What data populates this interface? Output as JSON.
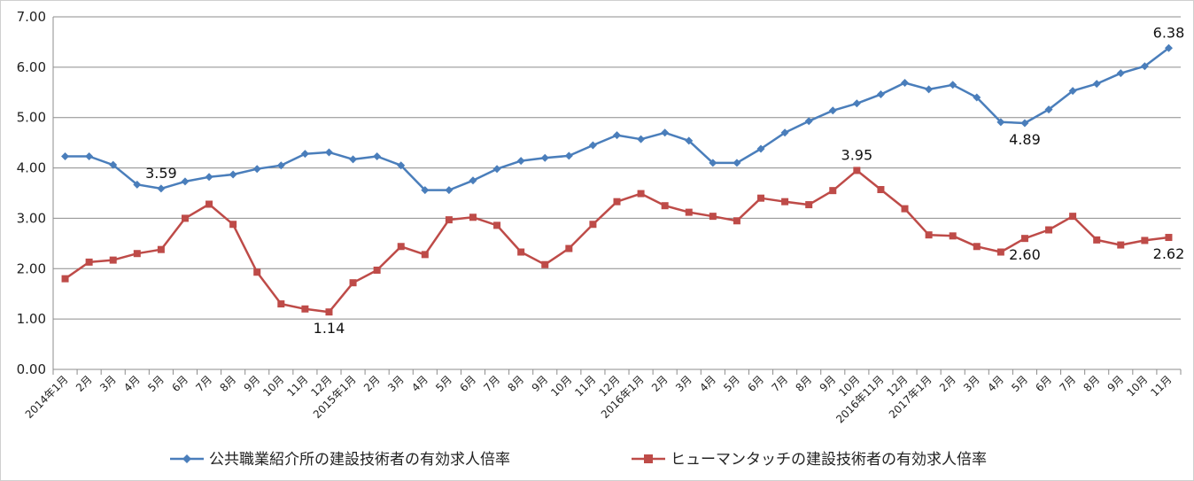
{
  "chart_data": {
    "type": "line",
    "title": "",
    "xlabel": "",
    "ylabel": "",
    "ylim": [
      0,
      7
    ],
    "y_ticks": [
      "0.00",
      "1.00",
      "2.00",
      "3.00",
      "4.00",
      "5.00",
      "6.00",
      "7.00"
    ],
    "grid": "horizontal",
    "legend_position": "bottom",
    "categories": [
      "2014年1月",
      "2月",
      "3月",
      "4月",
      "5月",
      "6月",
      "7月",
      "8月",
      "9月",
      "10月",
      "11月",
      "12月",
      "2015年1月",
      "2月",
      "3月",
      "4月",
      "5月",
      "6月",
      "7月",
      "8月",
      "9月",
      "10月",
      "11月",
      "12月",
      "2016年1月",
      "2月",
      "3月",
      "4月",
      "5月",
      "6月",
      "7月",
      "8月",
      "9月",
      "10月",
      "2016年11月",
      "12月",
      "2017年1月",
      "2月",
      "3月",
      "4月",
      "5月",
      "6月",
      "7月",
      "8月",
      "9月",
      "10月",
      "11月"
    ],
    "series": [
      {
        "name": "公共職業紹介所の建設技術者の有効求人倍率",
        "color": "#4a7ebb",
        "marker": "diamond",
        "values": [
          4.23,
          4.23,
          4.06,
          3.67,
          3.59,
          3.73,
          3.82,
          3.87,
          3.98,
          4.05,
          4.28,
          4.31,
          4.17,
          4.23,
          4.05,
          3.56,
          3.56,
          3.75,
          3.98,
          4.14,
          4.2,
          4.24,
          4.45,
          4.65,
          4.57,
          4.7,
          4.54,
          4.1,
          4.1,
          4.38,
          4.7,
          4.93,
          5.14,
          5.28,
          5.46,
          5.69,
          5.56,
          5.65,
          5.4,
          4.91,
          4.89,
          5.16,
          5.53,
          5.67,
          5.88,
          6.02,
          6.38
        ]
      },
      {
        "name": "ヒューマンタッチの建設技術者の有効求人倍率",
        "color": "#be4b48",
        "marker": "square",
        "values": [
          1.8,
          2.13,
          2.17,
          2.3,
          2.38,
          3.0,
          3.28,
          2.88,
          1.93,
          1.3,
          1.2,
          1.14,
          1.72,
          1.97,
          2.44,
          2.28,
          2.97,
          3.02,
          2.86,
          2.33,
          2.08,
          2.4,
          2.88,
          3.33,
          3.49,
          3.25,
          3.12,
          3.04,
          2.95,
          3.4,
          3.33,
          3.27,
          3.55,
          3.95,
          3.57,
          3.19,
          2.67,
          2.65,
          2.44,
          2.33,
          2.6,
          2.77,
          3.04,
          2.57,
          2.47,
          2.56,
          2.62
        ]
      }
    ],
    "annotations": [
      {
        "series": 0,
        "index": 4,
        "text": "3.59",
        "place": "above"
      },
      {
        "series": 0,
        "index": 40,
        "text": "4.89",
        "place": "below"
      },
      {
        "series": 0,
        "index": 46,
        "text": "6.38",
        "place": "above"
      },
      {
        "series": 1,
        "index": 11,
        "text": "1.14",
        "place": "below"
      },
      {
        "series": 1,
        "index": 33,
        "text": "3.95",
        "place": "above"
      },
      {
        "series": 1,
        "index": 40,
        "text": "2.60",
        "place": "below"
      },
      {
        "series": 1,
        "index": 46,
        "text": "2.62",
        "place": "below"
      }
    ]
  }
}
